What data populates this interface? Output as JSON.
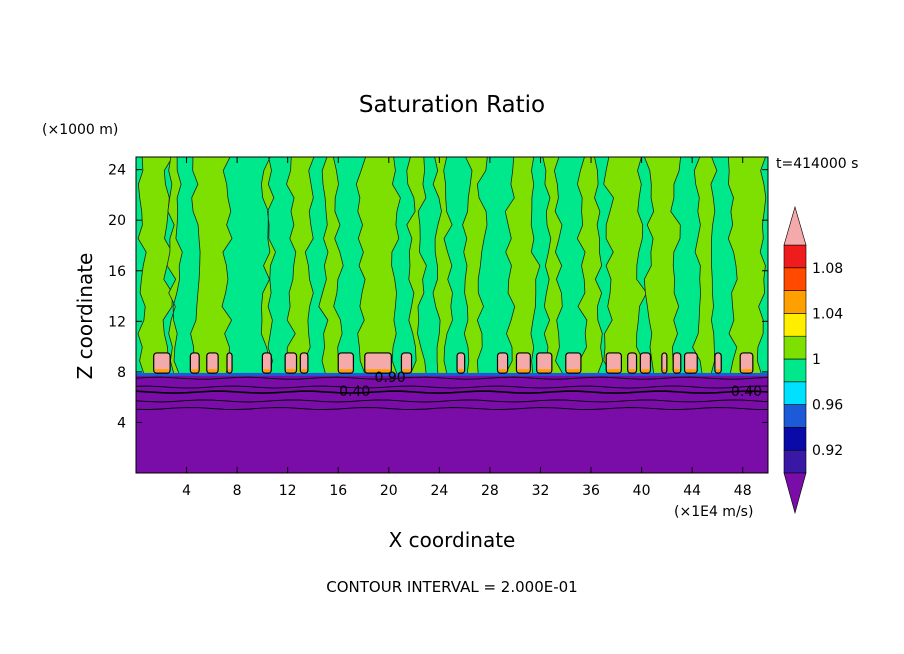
{
  "chart_data": {
    "type": "heatmap",
    "title": "Saturation Ratio",
    "xlabel": "X coordinate",
    "ylabel": "Z coordinate",
    "x_unit": "(×1E4 m/s)",
    "y_unit": "(×1000 m)",
    "time_label": "t=414000 s",
    "footer": "CONTOUR INTERVAL = 2.000E-01",
    "xlim": [
      0,
      50
    ],
    "ylim": [
      0,
      25
    ],
    "x_ticks": [
      4,
      8,
      12,
      16,
      20,
      24,
      28,
      32,
      36,
      40,
      44,
      48
    ],
    "y_ticks": [
      4,
      8,
      12,
      16,
      20,
      24
    ],
    "contour_labels": [
      {
        "text": "0.40",
        "x": 17.3,
        "y": 6.5
      },
      {
        "text": "0.90",
        "x": 20.1,
        "y": 7.6
      },
      {
        "text": "0.40",
        "x": 48.3,
        "y": 6.5
      }
    ],
    "colorbar": {
      "labels": [
        "1.08",
        "1.04",
        "1",
        "0.96",
        "0.92"
      ],
      "levels": [
        "<0.90",
        "0.90-0.92",
        "0.92-0.94",
        "0.94-0.96",
        "0.96-0.98",
        "0.98-1.00",
        "1.00-1.02",
        "1.02-1.04",
        "1.04-1.06",
        "1.06-1.08",
        "1.08-1.10",
        ">1.10"
      ],
      "colors": [
        "#7a0ca8",
        "#3a18a6",
        "#0a0aa8",
        "#1c5ad8",
        "#00e0ff",
        "#00e88c",
        "#7ee000",
        "#ffee00",
        "#ffa000",
        "#ff4a00",
        "#ee1c1c",
        "#f4aaaa"
      ]
    },
    "fields": {
      "below_cloud_base": "<0.90",
      "cloud_base_height": 7.8,
      "upper_background": "0.98-1.00",
      "plumes_level": "1.00-1.02",
      "plume_columns": [
        {
          "x0": 0.5,
          "x1": 2.5
        },
        {
          "x0": 2.8,
          "x1": 3.3
        },
        {
          "x0": 4.7,
          "x1": 7.2
        },
        {
          "x0": 10.3,
          "x1": 10.8
        },
        {
          "x0": 12.3,
          "x1": 13.7
        },
        {
          "x0": 14.8,
          "x1": 16.0
        },
        {
          "x0": 17.8,
          "x1": 20.6
        },
        {
          "x0": 21.8,
          "x1": 22.6
        },
        {
          "x0": 23.8,
          "x1": 24.7
        },
        {
          "x0": 26.2,
          "x1": 27.4
        },
        {
          "x0": 29.6,
          "x1": 31.6
        },
        {
          "x0": 32.5,
          "x1": 33.5
        },
        {
          "x0": 35.3,
          "x1": 36.6
        },
        {
          "x0": 37.4,
          "x1": 40.0
        },
        {
          "x0": 40.6,
          "x1": 42.7
        },
        {
          "x0": 44.4,
          "x1": 45.8
        },
        {
          "x0": 47.2,
          "x1": 49.5
        }
      ],
      "supersat_cells_level": ">1.10",
      "supersat_cells": [
        {
          "x0": 1.4,
          "x1": 2.7
        },
        {
          "x0": 4.3,
          "x1": 5.0
        },
        {
          "x0": 5.6,
          "x1": 6.5
        },
        {
          "x0": 7.2,
          "x1": 7.6
        },
        {
          "x0": 10.0,
          "x1": 10.7
        },
        {
          "x0": 11.8,
          "x1": 12.7
        },
        {
          "x0": 13.0,
          "x1": 13.6
        },
        {
          "x0": 16.0,
          "x1": 17.2
        },
        {
          "x0": 18.1,
          "x1": 20.2
        },
        {
          "x0": 21.0,
          "x1": 21.8
        },
        {
          "x0": 25.4,
          "x1": 26.0
        },
        {
          "x0": 28.6,
          "x1": 29.4
        },
        {
          "x0": 30.1,
          "x1": 31.2
        },
        {
          "x0": 31.7,
          "x1": 32.9
        },
        {
          "x0": 34.0,
          "x1": 35.2
        },
        {
          "x0": 37.2,
          "x1": 38.4
        },
        {
          "x0": 38.9,
          "x1": 39.6
        },
        {
          "x0": 39.9,
          "x1": 40.7
        },
        {
          "x0": 41.6,
          "x1": 42.0
        },
        {
          "x0": 42.5,
          "x1": 43.1
        },
        {
          "x0": 43.4,
          "x1": 44.4
        },
        {
          "x0": 45.8,
          "x1": 46.3
        },
        {
          "x0": 47.8,
          "x1": 48.8
        }
      ]
    }
  }
}
